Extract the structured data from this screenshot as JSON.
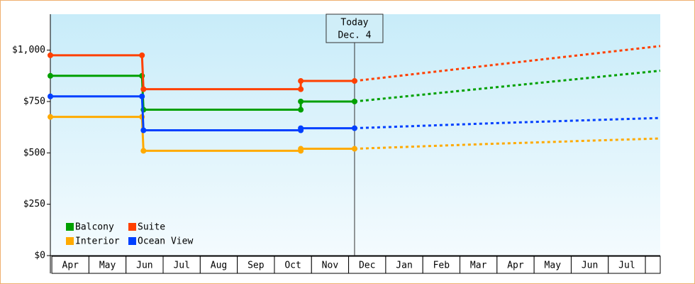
{
  "chart_data": {
    "type": "line",
    "annotation": {
      "x": 8.16,
      "lines": [
        "Today",
        "Dec. 4"
      ]
    },
    "xlim": [
      -0.04,
      16.4
    ],
    "xticks": [
      {
        "value": 0.5,
        "label": "Apr"
      },
      {
        "value": 1.5,
        "label": "May"
      },
      {
        "value": 2.5,
        "label": "Jun"
      },
      {
        "value": 3.5,
        "label": "Jul"
      },
      {
        "value": 4.5,
        "label": "Aug"
      },
      {
        "value": 5.5,
        "label": "Sep"
      },
      {
        "value": 6.5,
        "label": "Oct"
      },
      {
        "value": 7.5,
        "label": "Nov"
      },
      {
        "value": 8.5,
        "label": "Dec"
      },
      {
        "value": 9.5,
        "label": "Jan"
      },
      {
        "value": 10.5,
        "label": "Feb"
      },
      {
        "value": 11.5,
        "label": "Mar"
      },
      {
        "value": 12.5,
        "label": "Apr"
      },
      {
        "value": 13.5,
        "label": "May"
      },
      {
        "value": 14.5,
        "label": "Jun"
      },
      {
        "value": 15.5,
        "label": "Jul"
      }
    ],
    "ylim": [
      0,
      1175
    ],
    "yticks": [
      {
        "value": 0,
        "label": "$0"
      },
      {
        "value": 250,
        "label": "$250"
      },
      {
        "value": 500,
        "label": "$500"
      },
      {
        "value": 750,
        "label": "$750"
      },
      {
        "value": 1000,
        "label": "$1,000"
      }
    ],
    "legend": "lower left",
    "series": [
      {
        "name": "Balcony",
        "color": "#00a000",
        "x": [
          -0.04,
          2.43,
          2.47,
          6.71,
          6.71,
          8.16
        ],
        "values": [
          875,
          875,
          710,
          710,
          750,
          750
        ],
        "forecast": {
          "x": [
            8.16,
            12,
            16.4
          ],
          "values": [
            750,
            820,
            900
          ]
        }
      },
      {
        "name": "Suite",
        "color": "#ff4000",
        "x": [
          -0.04,
          2.43,
          2.47,
          6.71,
          6.71,
          8.16
        ],
        "values": [
          975,
          975,
          810,
          810,
          850,
          850
        ],
        "forecast": {
          "x": [
            8.16,
            12,
            16.4
          ],
          "values": [
            850,
            930,
            1020
          ]
        }
      },
      {
        "name": "Interior",
        "color": "#ffaa00",
        "x": [
          -0.04,
          2.43,
          2.47,
          6.71,
          6.71,
          8.16
        ],
        "values": [
          675,
          675,
          510,
          510,
          520,
          520
        ],
        "forecast": {
          "x": [
            8.16,
            12,
            16.4
          ],
          "values": [
            520,
            545,
            570
          ]
        }
      },
      {
        "name": "Ocean View",
        "color": "#0040ff",
        "x": [
          -0.04,
          2.43,
          2.47,
          6.71,
          6.71,
          8.16
        ],
        "values": [
          775,
          775,
          610,
          610,
          620,
          620
        ],
        "forecast": {
          "x": [
            8.16,
            12,
            16.4
          ],
          "values": [
            620,
            645,
            670
          ]
        }
      }
    ]
  }
}
